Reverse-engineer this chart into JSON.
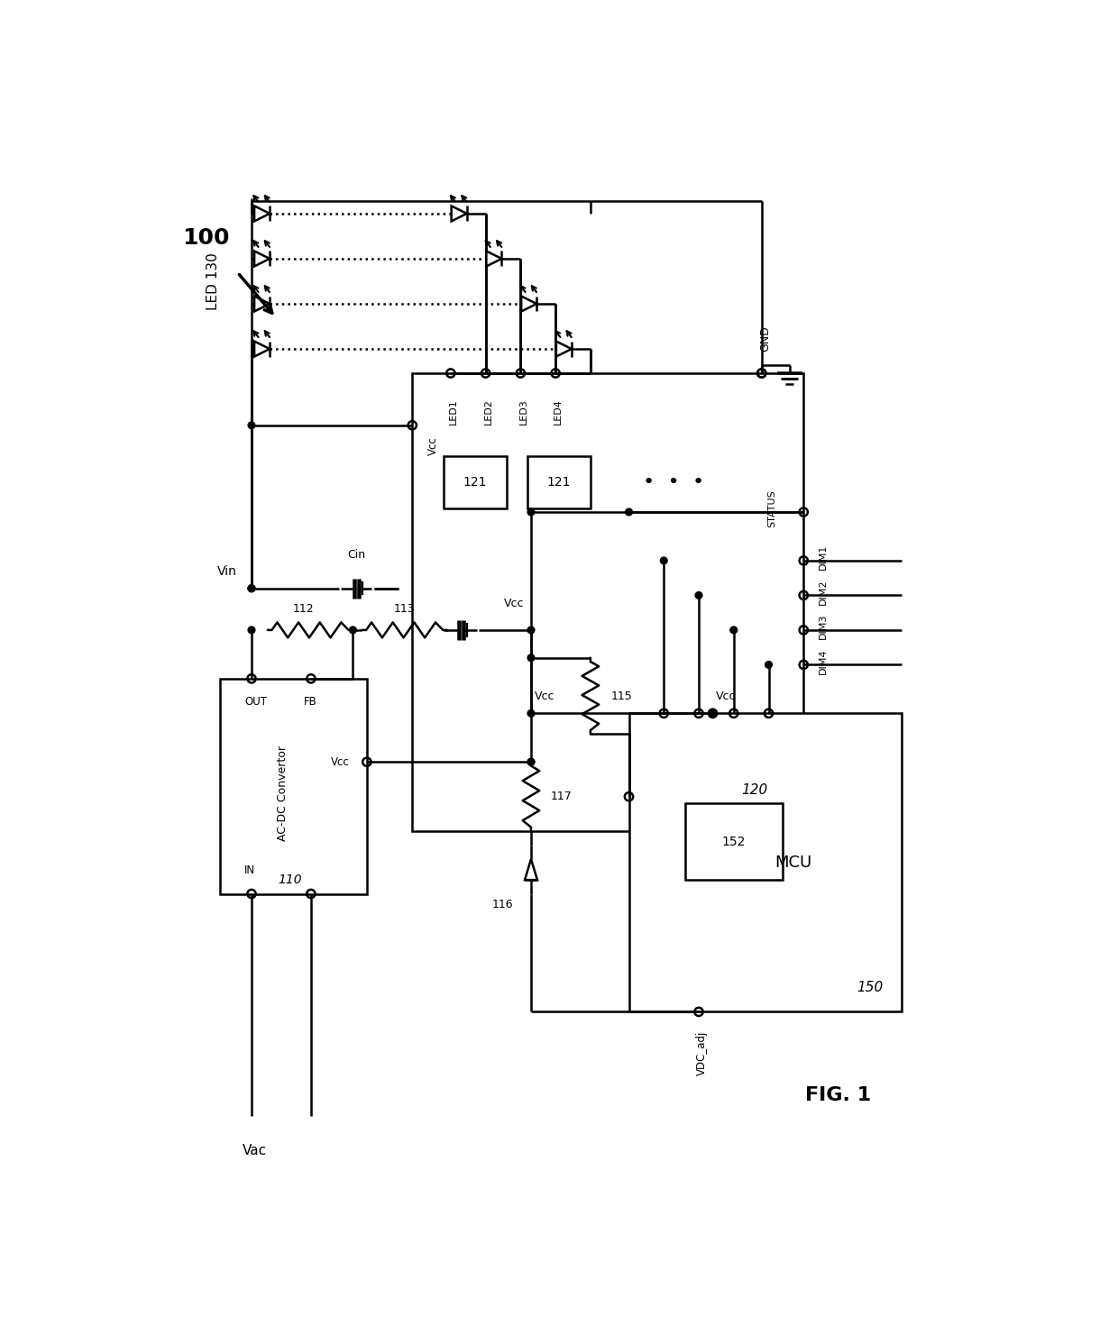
{
  "bg_color": "#ffffff",
  "line_color": "#000000",
  "lw": 1.8,
  "fig_label": "FIG. 1",
  "system_label": "100",
  "led_label": "LED 130",
  "box120_label": "120",
  "box110_label": "110",
  "box150_label": "150",
  "box152_label": "152",
  "box121_label": "121",
  "ac_dc_text": "AC-DC Convertor",
  "mcu_text": "MCU",
  "vcc_text": "Vcc",
  "vac_text": "Vac",
  "vin_text": "Vin",
  "cin_text": "Cin",
  "gnd_text": "GND",
  "out_text": "OUT",
  "fb_text": "FB",
  "in_text": "IN",
  "status_text": "STATUS",
  "vdc_adj_text": "VDC_adj",
  "label112": "112",
  "label113": "113",
  "label115": "115",
  "label116": "116",
  "label117": "117",
  "dim_labels": [
    "DIM1",
    "DIM2",
    "DIM3",
    "DIM4"
  ]
}
